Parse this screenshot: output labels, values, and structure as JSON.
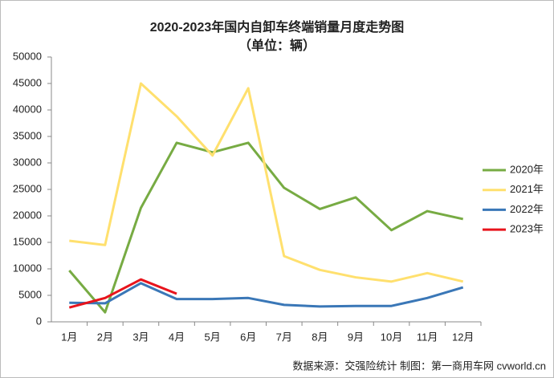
{
  "chart_data": {
    "type": "line",
    "title": "2020-2023年国内自卸车终端销量月度走势图",
    "subtitle": "（单位：辆）",
    "categories": [
      "1月",
      "2月",
      "3月",
      "4月",
      "5月",
      "6月",
      "7月",
      "8月",
      "9月",
      "10月",
      "11月",
      "12月"
    ],
    "series": [
      {
        "name": "2020年",
        "color": "#77ab43",
        "values": [
          9700,
          1800,
          21500,
          33800,
          32000,
          33800,
          25300,
          21300,
          23500,
          17300,
          20900,
          19400
        ]
      },
      {
        "name": "2021年",
        "color": "#ffe06e",
        "values": [
          15300,
          14500,
          45000,
          38800,
          31400,
          44100,
          12400,
          9800,
          8400,
          7600,
          9200,
          7600
        ]
      },
      {
        "name": "2022年",
        "color": "#3a77b7",
        "values": [
          3600,
          3500,
          7300,
          4300,
          4300,
          4500,
          3200,
          2900,
          3000,
          3000,
          4500,
          6500
        ]
      },
      {
        "name": "2023年",
        "color": "#e8141c",
        "values": [
          2700,
          4500,
          8000,
          5300,
          null,
          null,
          null,
          null,
          null,
          null,
          null,
          null
        ]
      }
    ],
    "ylim": [
      0,
      50000
    ],
    "yticks": [
      0,
      5000,
      10000,
      15000,
      20000,
      25000,
      30000,
      35000,
      40000,
      45000,
      50000
    ],
    "grid": false,
    "legend": "right",
    "source": "数据来源：交强险统计   制图：第一商用车网 cvworld.cn"
  }
}
